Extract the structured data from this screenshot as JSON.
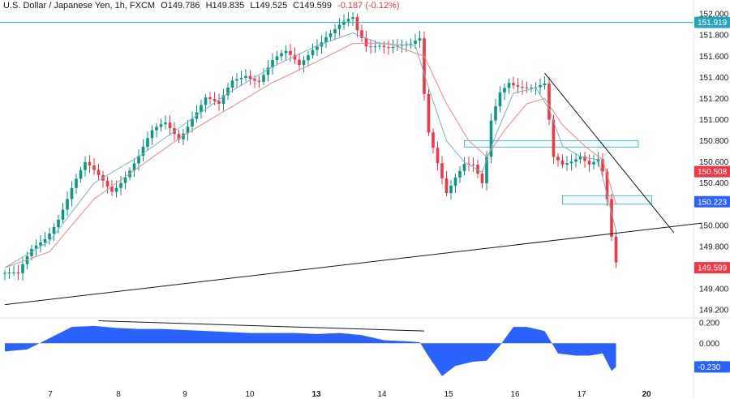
{
  "header": {
    "symbol": "U.S. Dollar / Japanese Yen, 1h, FXCM",
    "open": "O149.786",
    "high": "H149.835",
    "low": "L149.525",
    "close": "C149.599",
    "change": "-0.187 (-0.12%)"
  },
  "colors": {
    "up": "#089981",
    "down": "#f23645",
    "ma_fast": "#7fb0c8",
    "ma_slow": "#e88a8a",
    "oscillator": "#2962ff",
    "trendline": "#131722",
    "zone": "#5cb8c4"
  },
  "price_labels": {
    "top_line": "151.919",
    "last_close": "150.508",
    "level": "150.223",
    "current": "149.599",
    "osc_value": "-0.230"
  },
  "chart_data": {
    "type": "candlestick",
    "title": "U.S. Dollar / Japanese Yen, 1h, FXCM",
    "x_tick_labels": [
      "7",
      "8",
      "9",
      "10",
      "13",
      "14",
      "15",
      "16",
      "17",
      "20"
    ],
    "y_tick_labels": [
      "152.000",
      "151.800",
      "151.600",
      "151.400",
      "151.200",
      "151.000",
      "150.800",
      "150.600",
      "150.400",
      "150.200",
      "150.000",
      "149.800",
      "149.600",
      "149.400",
      "149.200"
    ],
    "ylim": [
      149.14,
      152.07
    ],
    "osc_tick_labels": [
      "0.200",
      "0.000",
      "-0.200"
    ],
    "osc_ylim": [
      -0.37,
      0.24
    ],
    "horizontal_line": 151.919,
    "price_path": [
      [
        0,
        149.55
      ],
      [
        3,
        149.5
      ],
      [
        6,
        149.75
      ],
      [
        9,
        149.9
      ],
      [
        12,
        150.1
      ],
      [
        15,
        150.35
      ],
      [
        18,
        150.55
      ],
      [
        21,
        150.45
      ],
      [
        24,
        150.35
      ],
      [
        27,
        150.5
      ],
      [
        30,
        150.65
      ],
      [
        33,
        150.85
      ],
      [
        36,
        150.95
      ],
      [
        39,
        150.85
      ],
      [
        42,
        151.05
      ],
      [
        45,
        151.2
      ],
      [
        48,
        151.1
      ],
      [
        51,
        151.35
      ],
      [
        54,
        151.45
      ],
      [
        57,
        151.4
      ],
      [
        60,
        151.55
      ],
      [
        63,
        151.6
      ],
      [
        66,
        151.5
      ],
      [
        69,
        151.7
      ],
      [
        72,
        151.82
      ],
      [
        75,
        151.88
      ],
      [
        78,
        151.92
      ],
      [
        79,
        151.8
      ],
      [
        81,
        151.68
      ],
      [
        84,
        151.74
      ],
      [
        88,
        151.72
      ],
      [
        91,
        151.68
      ],
      [
        93,
        151.72
      ],
      [
        94,
        151.2
      ],
      [
        95,
        150.85
      ],
      [
        97,
        150.6
      ],
      [
        99,
        150.35
      ],
      [
        101,
        150.5
      ],
      [
        103,
        150.6
      ],
      [
        105,
        150.55
      ],
      [
        107,
        150.35
      ],
      [
        108,
        150.6
      ],
      [
        109,
        150.95
      ],
      [
        111,
        151.25
      ],
      [
        113,
        151.38
      ],
      [
        116,
        151.35
      ],
      [
        119,
        151.3
      ],
      [
        121,
        151.3
      ],
      [
        122,
        150.95
      ],
      [
        123,
        150.6
      ],
      [
        125,
        150.55
      ],
      [
        127,
        150.62
      ],
      [
        129,
        150.7
      ],
      [
        131,
        150.62
      ],
      [
        133,
        150.64
      ],
      [
        134,
        150.5
      ],
      [
        135,
        150.22
      ],
      [
        136,
        149.85
      ],
      [
        137,
        149.6
      ]
    ],
    "ma_fast_path": [
      [
        0,
        149.6
      ],
      [
        10,
        149.85
      ],
      [
        20,
        150.4
      ],
      [
        30,
        150.65
      ],
      [
        40,
        150.95
      ],
      [
        50,
        151.25
      ],
      [
        60,
        151.5
      ],
      [
        70,
        151.7
      ],
      [
        78,
        151.82
      ],
      [
        84,
        151.72
      ],
      [
        92,
        151.7
      ],
      [
        95,
        151.3
      ],
      [
        99,
        150.8
      ],
      [
        103,
        150.6
      ],
      [
        107,
        150.5
      ],
      [
        110,
        150.85
      ],
      [
        114,
        151.25
      ],
      [
        119,
        151.3
      ],
      [
        122,
        151.1
      ],
      [
        125,
        150.75
      ],
      [
        129,
        150.65
      ],
      [
        133,
        150.62
      ],
      [
        137,
        149.95
      ]
    ],
    "ma_slow_path": [
      [
        0,
        149.6
      ],
      [
        10,
        149.75
      ],
      [
        20,
        150.25
      ],
      [
        30,
        150.55
      ],
      [
        40,
        150.85
      ],
      [
        50,
        151.1
      ],
      [
        60,
        151.35
      ],
      [
        70,
        151.55
      ],
      [
        78,
        151.72
      ],
      [
        86,
        151.72
      ],
      [
        94,
        151.6
      ],
      [
        99,
        151.15
      ],
      [
        104,
        150.8
      ],
      [
        108,
        150.65
      ],
      [
        112,
        150.9
      ],
      [
        117,
        151.15
      ],
      [
        121,
        151.2
      ],
      [
        125,
        150.95
      ],
      [
        130,
        150.75
      ],
      [
        134,
        150.62
      ],
      [
        137,
        150.2
      ]
    ],
    "resistance_zone": {
      "x_from": 103,
      "x_to": 142,
      "y_from": 150.74,
      "y_to": 150.8
    },
    "support_zone": {
      "x_from": 125,
      "x_to": 145,
      "y_from": 150.2,
      "y_to": 150.28
    },
    "support_trendline": [
      [
        0,
        149.25
      ],
      [
        156,
        150.02
      ]
    ],
    "resistance_trendline": [
      [
        121,
        151.44
      ],
      [
        150,
        149.93
      ]
    ],
    "oscillator": [
      [
        0,
        -0.08
      ],
      [
        5,
        -0.06
      ],
      [
        10,
        0.05
      ],
      [
        15,
        0.16
      ],
      [
        20,
        0.17
      ],
      [
        25,
        0.15
      ],
      [
        30,
        0.14
      ],
      [
        35,
        0.14
      ],
      [
        40,
        0.13
      ],
      [
        45,
        0.12
      ],
      [
        50,
        0.11
      ],
      [
        55,
        0.1
      ],
      [
        60,
        0.1
      ],
      [
        65,
        0.1
      ],
      [
        70,
        0.09
      ],
      [
        75,
        0.1
      ],
      [
        80,
        0.08
      ],
      [
        85,
        0.03
      ],
      [
        90,
        0.02
      ],
      [
        93,
        0.01
      ],
      [
        95,
        -0.13
      ],
      [
        98,
        -0.32
      ],
      [
        101,
        -0.22
      ],
      [
        105,
        -0.18
      ],
      [
        108,
        -0.17
      ],
      [
        111,
        -0.02
      ],
      [
        114,
        0.16
      ],
      [
        117,
        0.16
      ],
      [
        121,
        0.12
      ],
      [
        124,
        -0.1
      ],
      [
        128,
        -0.12
      ],
      [
        131,
        -0.12
      ],
      [
        134,
        -0.1
      ],
      [
        136,
        -0.27
      ],
      [
        137,
        -0.23
      ]
    ],
    "osc_divergence_line": [
      [
        21,
        0.22
      ],
      [
        94,
        0.12
      ]
    ]
  }
}
